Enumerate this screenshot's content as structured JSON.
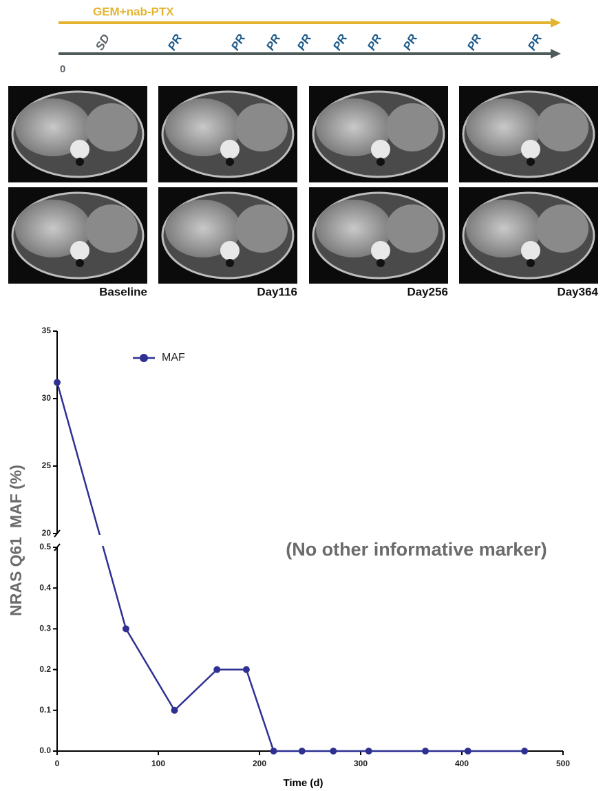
{
  "timeline": {
    "treatment": "GEM+nab-PTX",
    "start": "0",
    "responses": [
      "SD",
      "PR",
      "PR",
      "PR",
      "PR",
      "PR",
      "PR",
      "PR",
      "PR",
      "PR"
    ]
  },
  "images": {
    "labels": [
      "Baseline",
      "Day116",
      "Day256",
      "Day364"
    ]
  },
  "chart_data": {
    "type": "line",
    "y_label": "NRAS Q61  MAF (%)",
    "x_label": "Time (d)",
    "annotation": "(No other informative marker)",
    "x": [
      0,
      68,
      116,
      158,
      187,
      214,
      242,
      273,
      308,
      364,
      406,
      462
    ],
    "series": [
      {
        "name": "MAF",
        "color": "#2e3192",
        "values": [
          31.2,
          0.3,
          0.1,
          0.2,
          0.2,
          0,
          0,
          0,
          0,
          0,
          0,
          0
        ]
      }
    ],
    "xlim": [
      0,
      500
    ],
    "xticks": [
      0,
      100,
      200,
      300,
      400,
      500
    ],
    "ylim": [
      0,
      0.5
    ],
    "yticks": [
      {
        "value": 0,
        "label": "0.0"
      },
      0.1,
      0.2,
      0.3,
      0.4,
      0.5
    ],
    "y_break": {
      "ylim": [
        20,
        35
      ],
      "yticks": [
        20,
        25,
        30,
        35
      ]
    }
  }
}
